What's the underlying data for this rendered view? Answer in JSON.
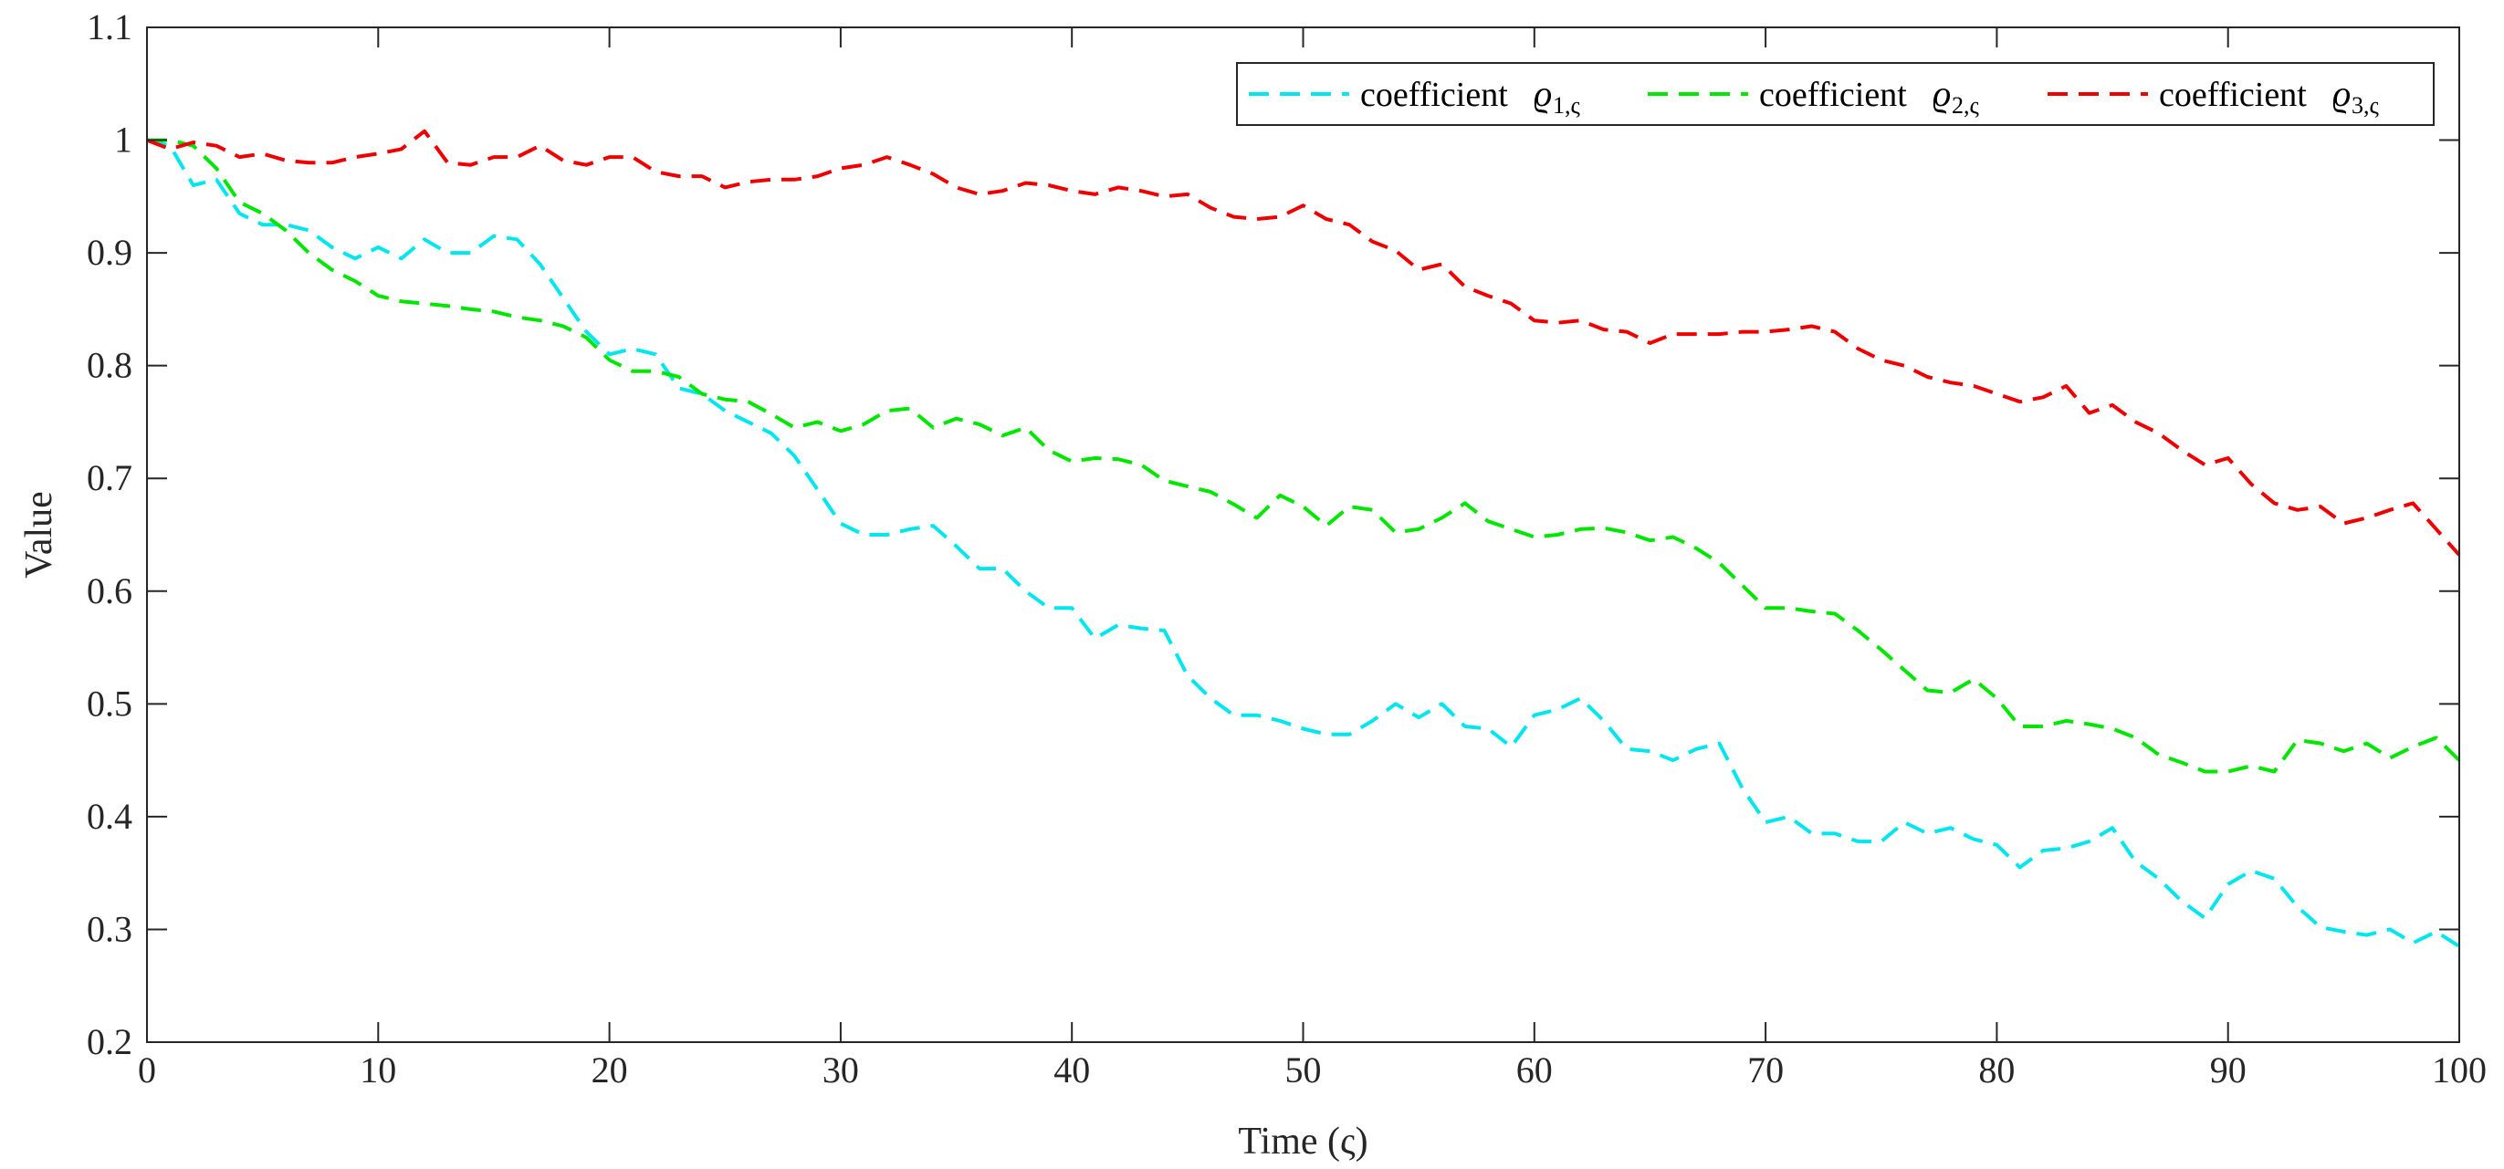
{
  "chart_data": {
    "type": "line",
    "title": "",
    "xlabel": "Time (ς)",
    "ylabel": "Value",
    "xlim": [
      0,
      100
    ],
    "ylim": [
      0.2,
      1.1
    ],
    "xticks": [
      0,
      10,
      20,
      30,
      40,
      50,
      60,
      70,
      80,
      90,
      100
    ],
    "yticks": [
      0.2,
      0.3,
      0.4,
      0.5,
      0.6,
      0.7,
      0.8,
      0.9,
      1,
      1.1
    ],
    "grid": false,
    "legend_position": "top-right",
    "line_style": "dashed",
    "series": [
      {
        "name": "coefficient ϱ1,ς",
        "label_text": "coefficient",
        "label_symbol": "ϱ",
        "label_subscript": "1,ς",
        "color": "#00e5ee",
        "x": [
          0,
          1,
          2,
          3,
          4,
          5,
          6,
          7,
          8,
          9,
          10,
          11,
          12,
          13,
          14,
          15,
          16,
          17,
          18,
          19,
          20,
          21,
          22,
          23,
          24,
          25,
          26,
          27,
          28,
          29,
          30,
          31,
          32,
          33,
          34,
          35,
          36,
          37,
          38,
          39,
          40,
          41,
          42,
          43,
          44,
          45,
          46,
          47,
          48,
          49,
          50,
          51,
          52,
          53,
          54,
          55,
          56,
          57,
          58,
          59,
          60,
          61,
          62,
          63,
          64,
          65,
          66,
          67,
          68,
          69,
          70,
          71,
          72,
          73,
          74,
          75,
          76,
          77,
          78,
          79,
          80,
          81,
          82,
          83,
          84,
          85,
          86,
          87,
          88,
          89,
          90,
          91,
          92,
          93,
          94,
          95,
          96,
          97,
          98,
          99,
          100
        ],
        "y": [
          1.0,
          0.995,
          0.96,
          0.965,
          0.935,
          0.925,
          0.925,
          0.92,
          0.905,
          0.895,
          0.905,
          0.895,
          0.912,
          0.9,
          0.9,
          0.915,
          0.912,
          0.89,
          0.86,
          0.83,
          0.81,
          0.815,
          0.81,
          0.78,
          0.775,
          0.76,
          0.75,
          0.74,
          0.72,
          0.69,
          0.66,
          0.65,
          0.65,
          0.655,
          0.658,
          0.64,
          0.62,
          0.62,
          0.6,
          0.585,
          0.585,
          0.558,
          0.57,
          0.567,
          0.565,
          0.525,
          0.505,
          0.49,
          0.49,
          0.485,
          0.478,
          0.473,
          0.473,
          0.485,
          0.5,
          0.488,
          0.5,
          0.48,
          0.478,
          0.462,
          0.49,
          0.495,
          0.505,
          0.485,
          0.46,
          0.458,
          0.45,
          0.46,
          0.465,
          0.425,
          0.395,
          0.4,
          0.385,
          0.385,
          0.378,
          0.378,
          0.395,
          0.385,
          0.39,
          0.38,
          0.375,
          0.355,
          0.37,
          0.372,
          0.378,
          0.39,
          0.36,
          0.345,
          0.325,
          0.31,
          0.34,
          0.352,
          0.345,
          0.32,
          0.302,
          0.298,
          0.295,
          0.3,
          0.288,
          0.298,
          0.285
        ]
      },
      {
        "name": "coefficient ϱ2,ς",
        "label_text": "coefficient",
        "label_symbol": "ϱ",
        "label_subscript": "2,ς",
        "color": "#00e600",
        "x": [
          0,
          1,
          2,
          3,
          4,
          5,
          6,
          7,
          8,
          9,
          10,
          11,
          12,
          13,
          14,
          15,
          16,
          17,
          18,
          19,
          20,
          21,
          22,
          23,
          24,
          25,
          26,
          27,
          28,
          29,
          30,
          31,
          32,
          33,
          34,
          35,
          36,
          37,
          38,
          39,
          40,
          41,
          42,
          43,
          44,
          45,
          46,
          47,
          48,
          49,
          50,
          51,
          52,
          53,
          54,
          55,
          56,
          57,
          58,
          59,
          60,
          61,
          62,
          63,
          64,
          65,
          66,
          67,
          68,
          69,
          70,
          71,
          72,
          73,
          74,
          75,
          76,
          77,
          78,
          79,
          80,
          81,
          82,
          83,
          84,
          85,
          86,
          87,
          88,
          89,
          90,
          91,
          92,
          93,
          94,
          95,
          96,
          97,
          98,
          99,
          100
        ],
        "y": [
          1.0,
          1.0,
          0.995,
          0.975,
          0.945,
          0.935,
          0.92,
          0.9,
          0.885,
          0.875,
          0.862,
          0.857,
          0.855,
          0.853,
          0.85,
          0.848,
          0.843,
          0.84,
          0.835,
          0.825,
          0.805,
          0.795,
          0.795,
          0.79,
          0.775,
          0.77,
          0.768,
          0.757,
          0.745,
          0.75,
          0.742,
          0.748,
          0.76,
          0.762,
          0.745,
          0.753,
          0.748,
          0.738,
          0.745,
          0.725,
          0.715,
          0.718,
          0.717,
          0.712,
          0.698,
          0.693,
          0.688,
          0.677,
          0.665,
          0.685,
          0.675,
          0.658,
          0.675,
          0.672,
          0.652,
          0.655,
          0.665,
          0.678,
          0.662,
          0.655,
          0.648,
          0.65,
          0.655,
          0.656,
          0.652,
          0.645,
          0.648,
          0.638,
          0.625,
          0.605,
          0.585,
          0.585,
          0.582,
          0.58,
          0.565,
          0.548,
          0.53,
          0.512,
          0.51,
          0.522,
          0.505,
          0.48,
          0.48,
          0.485,
          0.482,
          0.478,
          0.47,
          0.455,
          0.448,
          0.44,
          0.44,
          0.445,
          0.44,
          0.468,
          0.465,
          0.458,
          0.465,
          0.452,
          0.462,
          0.47,
          0.45
        ]
      },
      {
        "name": "coefficient ϱ3,ς",
        "label_text": "coefficient",
        "label_symbol": "ϱ",
        "label_subscript": "3,ς",
        "color": "#ee0000",
        "x": [
          0,
          1,
          2,
          3,
          4,
          5,
          6,
          7,
          8,
          9,
          10,
          11,
          12,
          13,
          14,
          15,
          16,
          17,
          18,
          19,
          20,
          21,
          22,
          23,
          24,
          25,
          26,
          27,
          28,
          29,
          30,
          31,
          32,
          33,
          34,
          35,
          36,
          37,
          38,
          39,
          40,
          41,
          42,
          43,
          44,
          45,
          46,
          47,
          48,
          49,
          50,
          51,
          52,
          53,
          54,
          55,
          56,
          57,
          58,
          59,
          60,
          61,
          62,
          63,
          64,
          65,
          66,
          67,
          68,
          69,
          70,
          71,
          72,
          73,
          74,
          75,
          76,
          77,
          78,
          79,
          80,
          81,
          82,
          83,
          84,
          85,
          86,
          87,
          88,
          89,
          90,
          91,
          92,
          93,
          94,
          95,
          96,
          97,
          98,
          99,
          100
        ],
        "y": [
          1.0,
          0.992,
          0.998,
          0.995,
          0.985,
          0.988,
          0.982,
          0.98,
          0.98,
          0.985,
          0.988,
          0.992,
          1.008,
          0.98,
          0.978,
          0.985,
          0.985,
          0.995,
          0.982,
          0.978,
          0.985,
          0.985,
          0.972,
          0.968,
          0.968,
          0.958,
          0.963,
          0.965,
          0.965,
          0.968,
          0.975,
          0.978,
          0.985,
          0.978,
          0.97,
          0.958,
          0.952,
          0.955,
          0.962,
          0.96,
          0.955,
          0.952,
          0.958,
          0.955,
          0.95,
          0.952,
          0.94,
          0.932,
          0.93,
          0.932,
          0.942,
          0.93,
          0.925,
          0.91,
          0.902,
          0.885,
          0.89,
          0.87,
          0.862,
          0.855,
          0.84,
          0.838,
          0.84,
          0.832,
          0.83,
          0.82,
          0.828,
          0.828,
          0.828,
          0.83,
          0.83,
          0.832,
          0.835,
          0.83,
          0.815,
          0.805,
          0.8,
          0.79,
          0.785,
          0.782,
          0.775,
          0.768,
          0.772,
          0.782,
          0.758,
          0.765,
          0.75,
          0.74,
          0.725,
          0.712,
          0.718,
          0.695,
          0.678,
          0.672,
          0.675,
          0.66,
          0.665,
          0.672,
          0.678,
          0.655,
          0.632
        ]
      }
    ]
  }
}
